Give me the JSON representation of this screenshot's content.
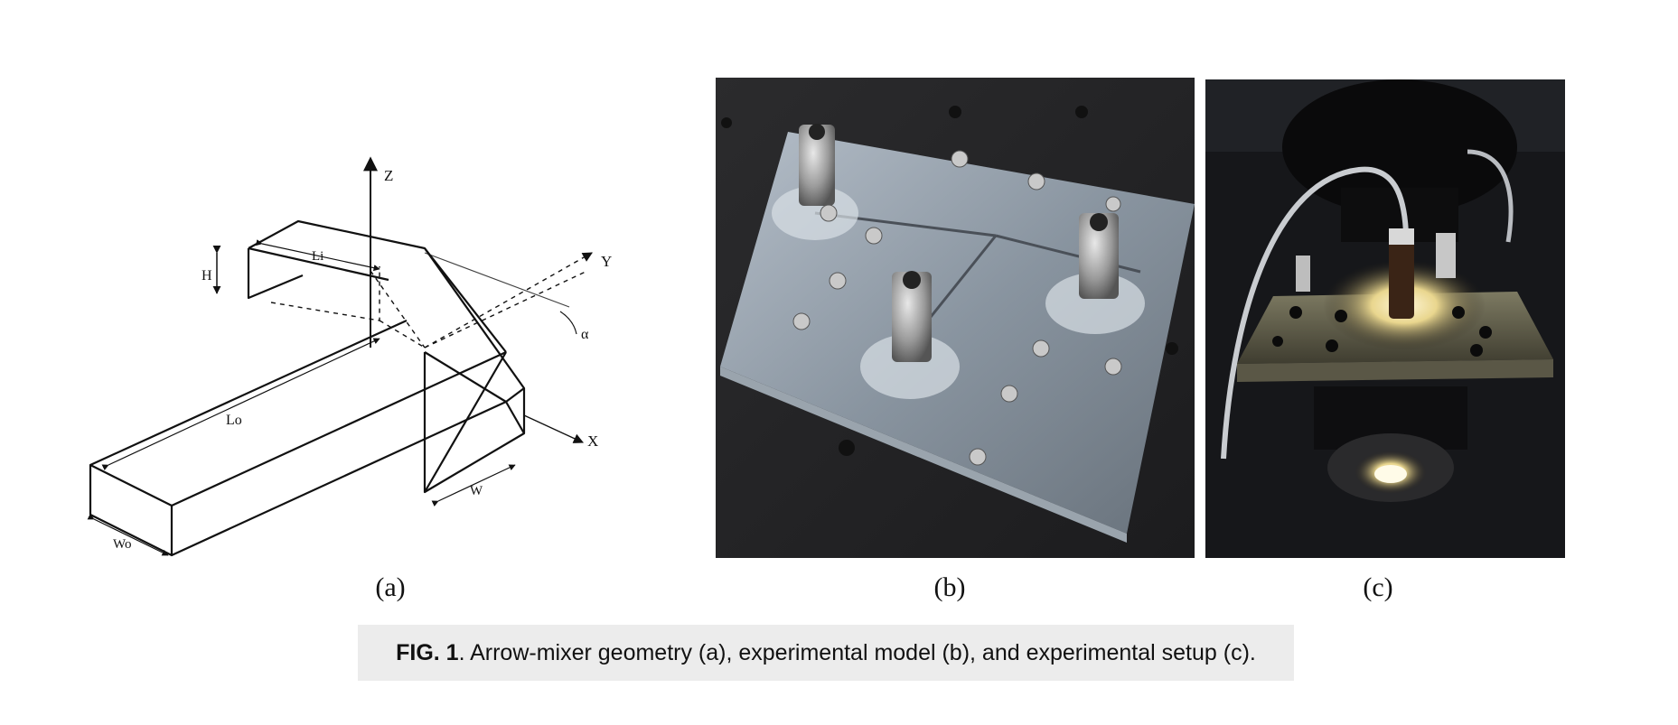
{
  "figure": {
    "panels": [
      {
        "id": "a",
        "label": "(a)"
      },
      {
        "id": "b",
        "label": "(b)"
      },
      {
        "id": "c",
        "label": "(c)"
      }
    ],
    "diagram": {
      "axis_z": "Z",
      "axis_y": "Y",
      "axis_x": "X",
      "height_label": "H",
      "inlet_length_label": "Li",
      "outlet_length_label": "Lo",
      "outlet_width_label": "Wo",
      "inlet_width_label": "W",
      "angle_label": "α"
    },
    "caption": {
      "prefix": "FIG. 1",
      "text": ". Arrow-mixer geometry (a), experimental model (b), and experimental setup (c)."
    }
  }
}
